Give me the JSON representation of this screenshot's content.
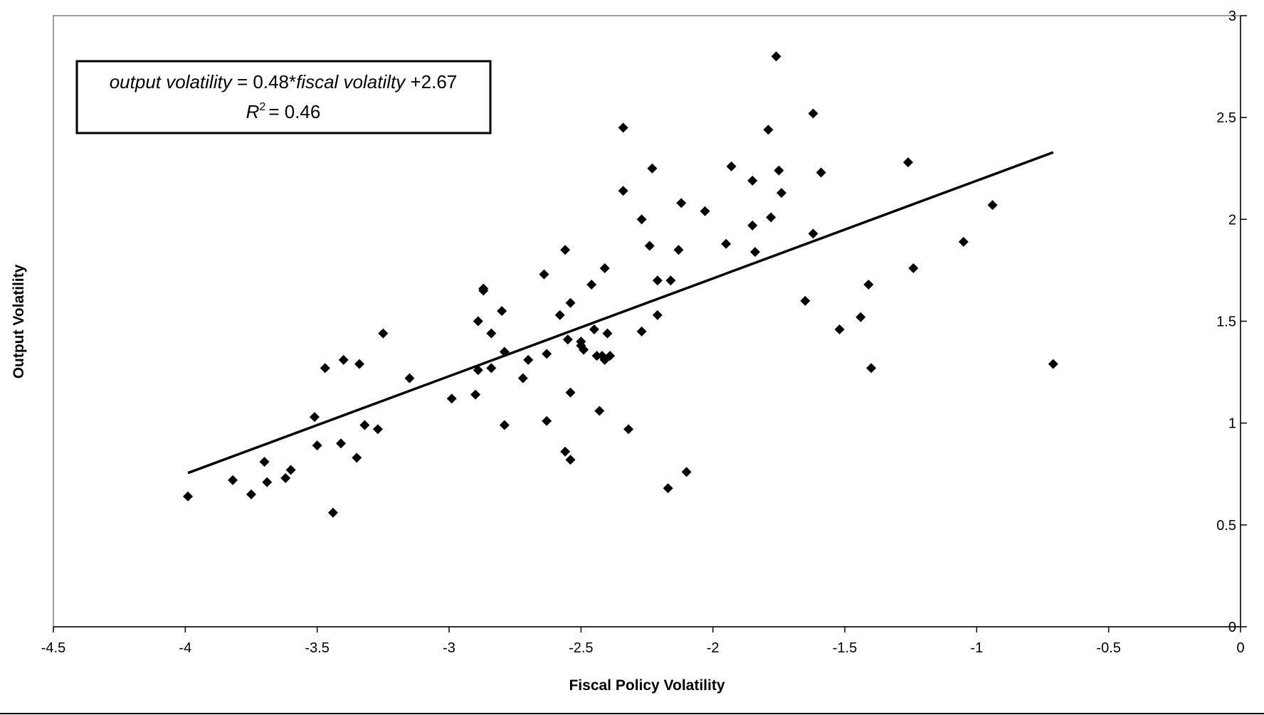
{
  "chart_data": {
    "type": "scatter",
    "xlabel": "Fiscal Policy Volatility",
    "ylabel": "Output Volatility",
    "xlim": [
      -4.5,
      0
    ],
    "ylim": [
      0,
      3
    ],
    "x_ticks": [
      "-4.5",
      "-4",
      "-3.5",
      "-3",
      "-2.5",
      "-2",
      "-1.5",
      "-1",
      "-0.5",
      "0"
    ],
    "y_ticks": [
      "0",
      "0.5",
      "1",
      "1.5",
      "2",
      "2.5",
      "3"
    ],
    "y_axis_position": "right",
    "grid": false,
    "marker": "diamond",
    "marker_color": "#000000",
    "series": [
      {
        "points": [
          [
            -3.99,
            0.64
          ],
          [
            -3.82,
            0.72
          ],
          [
            -3.75,
            0.65
          ],
          [
            -3.7,
            0.81
          ],
          [
            -3.69,
            0.71
          ],
          [
            -3.62,
            0.73
          ],
          [
            -3.6,
            0.77
          ],
          [
            -3.51,
            1.03
          ],
          [
            -3.5,
            0.89
          ],
          [
            -3.47,
            1.27
          ],
          [
            -3.44,
            0.56
          ],
          [
            -3.41,
            0.9
          ],
          [
            -3.4,
            1.31
          ],
          [
            -3.35,
            0.83
          ],
          [
            -3.34,
            1.29
          ],
          [
            -3.32,
            0.99
          ],
          [
            -3.27,
            0.97
          ],
          [
            -3.25,
            1.44
          ],
          [
            -3.15,
            1.22
          ],
          [
            -2.99,
            1.12
          ],
          [
            -2.9,
            1.14
          ],
          [
            -2.89,
            1.26
          ],
          [
            -2.89,
            1.5
          ],
          [
            -2.87,
            1.65
          ],
          [
            -2.87,
            1.66
          ],
          [
            -2.84,
            1.27
          ],
          [
            -2.84,
            1.44
          ],
          [
            -2.8,
            1.55
          ],
          [
            -2.79,
            1.35
          ],
          [
            -2.79,
            0.99
          ],
          [
            -2.72,
            1.22
          ],
          [
            -2.7,
            1.31
          ],
          [
            -2.64,
            1.73
          ],
          [
            -2.63,
            1.34
          ],
          [
            -2.63,
            1.01
          ],
          [
            -2.58,
            1.53
          ],
          [
            -2.56,
            0.86
          ],
          [
            -2.56,
            1.85
          ],
          [
            -2.55,
            1.41
          ],
          [
            -2.54,
            0.82
          ],
          [
            -2.54,
            1.15
          ],
          [
            -2.54,
            1.59
          ],
          [
            -2.5,
            1.4
          ],
          [
            -2.5,
            1.38
          ],
          [
            -2.49,
            1.36
          ],
          [
            -2.46,
            1.68
          ],
          [
            -2.45,
            1.46
          ],
          [
            -2.44,
            1.33
          ],
          [
            -2.43,
            1.06
          ],
          [
            -2.42,
            1.33
          ],
          [
            -2.41,
            1.31
          ],
          [
            -2.41,
            1.76
          ],
          [
            -2.4,
            1.44
          ],
          [
            -2.39,
            1.33
          ],
          [
            -2.34,
            2.45
          ],
          [
            -2.34,
            2.14
          ],
          [
            -2.32,
            0.97
          ],
          [
            -2.27,
            2.0
          ],
          [
            -2.27,
            1.45
          ],
          [
            -2.24,
            1.87
          ],
          [
            -2.23,
            2.25
          ],
          [
            -2.21,
            1.7
          ],
          [
            -2.21,
            1.53
          ],
          [
            -2.17,
            0.68
          ],
          [
            -2.16,
            1.7
          ],
          [
            -2.13,
            1.85
          ],
          [
            -2.12,
            2.08
          ],
          [
            -2.1,
            0.76
          ],
          [
            -2.03,
            2.04
          ],
          [
            -1.95,
            1.88
          ],
          [
            -1.93,
            2.26
          ],
          [
            -1.85,
            2.19
          ],
          [
            -1.85,
            1.97
          ],
          [
            -1.84,
            1.84
          ],
          [
            -1.79,
            2.44
          ],
          [
            -1.78,
            2.01
          ],
          [
            -1.76,
            2.8
          ],
          [
            -1.75,
            2.24
          ],
          [
            -1.74,
            2.13
          ],
          [
            -1.65,
            1.6
          ],
          [
            -1.62,
            1.93
          ],
          [
            -1.62,
            2.52
          ],
          [
            -1.59,
            2.23
          ],
          [
            -1.52,
            1.46
          ],
          [
            -1.44,
            1.52
          ],
          [
            -1.41,
            1.68
          ],
          [
            -1.4,
            1.27
          ],
          [
            -1.26,
            2.28
          ],
          [
            -1.24,
            1.76
          ],
          [
            -1.05,
            1.89
          ],
          [
            -0.94,
            2.07
          ],
          [
            -0.71,
            1.29
          ]
        ]
      }
    ],
    "trendline": {
      "x": [
        -3.99,
        -0.71
      ],
      "y": [
        0.755,
        2.329
      ],
      "equation": {
        "lhs": "output volatility",
        "eq_sign": "= 0.48*",
        "rhs": "fiscal volatilty",
        "constant": "+2.67",
        "r2_symbol": "R",
        "r2_sup": "2",
        "r2_value": "= 0.46"
      }
    }
  }
}
